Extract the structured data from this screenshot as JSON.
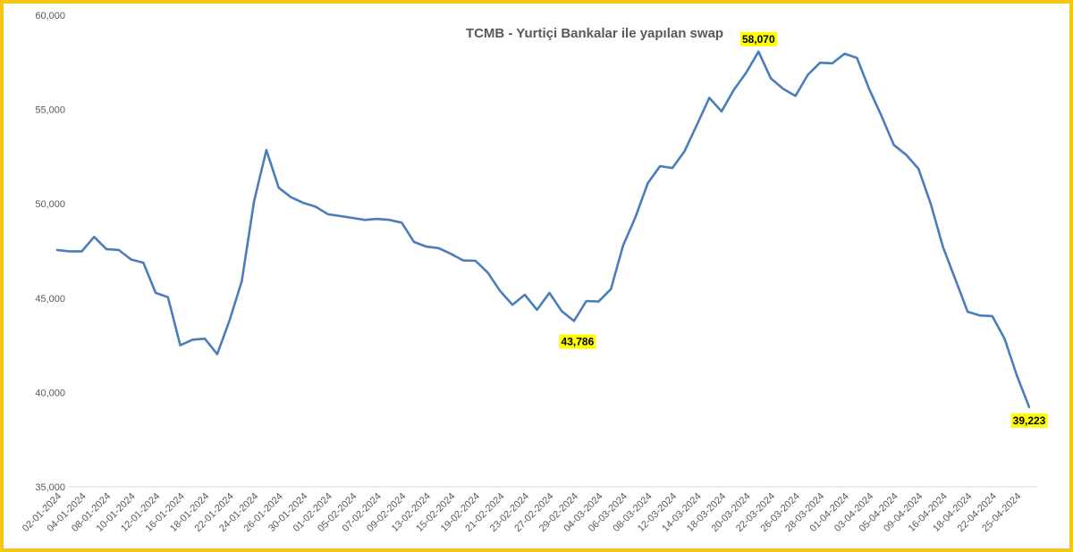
{
  "chart_data": {
    "type": "line",
    "title": "TCMB - Yurtiçi Bankalar ile yapılan swap",
    "xlabel": "",
    "ylabel": "",
    "ylim": [
      35000,
      60000
    ],
    "yticks": [
      35000,
      40000,
      45000,
      50000,
      55000,
      60000
    ],
    "ytick_labels": [
      "35,000",
      "40,000",
      "45,000",
      "50,000",
      "55,000",
      "60,000"
    ],
    "grid": false,
    "legend": "none",
    "line_color": "#4a7ebb",
    "x_tick_labels": [
      "02-01-2024",
      "04-01-2024",
      "08-01-2024",
      "10-01-2024",
      "12-01-2024",
      "16-01-2024",
      "18-01-2024",
      "22-01-2024",
      "24-01-2024",
      "26-01-2024",
      "30-01-2024",
      "01-02-2024",
      "05-02-2024",
      "07-02-2024",
      "09-02-2024",
      "13-02-2024",
      "15-02-2024",
      "19-02-2024",
      "21-02-2024",
      "23-02-2024",
      "27-02-2024",
      "29-02-2024",
      "04-03-2024",
      "06-03-2024",
      "08-03-2024",
      "12-03-2024",
      "14-03-2024",
      "18-03-2024",
      "20-03-2024",
      "22-03-2024",
      "26-03-2024",
      "28-03-2024",
      "01-04-2024",
      "03-04-2024",
      "05-04-2024",
      "09-04-2024",
      "16-04-2024",
      "18-04-2024",
      "22-04-2024",
      "25-04-2024"
    ],
    "values": [
      47550,
      47480,
      47480,
      48250,
      47600,
      47550,
      47050,
      46880,
      45280,
      45050,
      42500,
      42800,
      42850,
      42030,
      43800,
      45900,
      50150,
      52850,
      50850,
      50350,
      50050,
      49850,
      49450,
      49350,
      49250,
      49150,
      49200,
      49150,
      49000,
      47980,
      47730,
      47650,
      47350,
      47000,
      46980,
      46350,
      45380,
      44650,
      45180,
      44380,
      45280,
      44320,
      43786,
      44850,
      44820,
      45480,
      47800,
      49300,
      51100,
      52000,
      51900,
      52800,
      54200,
      55620,
      54900,
      56050,
      56950,
      58070,
      56650,
      56100,
      55720,
      56830,
      57480,
      57450,
      57960,
      57730,
      56080,
      54650,
      53120,
      52600,
      51860,
      50000,
      47700,
      46000,
      44280,
      44080,
      44050,
      42850,
      40900,
      39223
    ],
    "annotations": [
      {
        "label": "58,070",
        "index": 57
      },
      {
        "label": "43,786",
        "index": 42
      },
      {
        "label": "39,223",
        "index": 79
      }
    ],
    "annotation_bg": "#ffff00"
  }
}
